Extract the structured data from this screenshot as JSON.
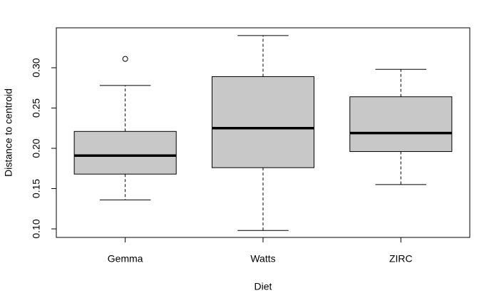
{
  "chart_data": {
    "type": "boxplot",
    "xlabel": "Diet",
    "ylabel": "Distance to centroid",
    "categories": [
      "Gemma",
      "Watts",
      "ZIRC"
    ],
    "boxes": [
      {
        "whislo": 0.136,
        "q1": 0.168,
        "med": 0.191,
        "q3": 0.221,
        "whishi": 0.278,
        "fliers": [
          0.311
        ]
      },
      {
        "whislo": 0.098,
        "q1": 0.176,
        "med": 0.225,
        "q3": 0.289,
        "whishi": 0.34,
        "fliers": []
      },
      {
        "whislo": 0.155,
        "q1": 0.196,
        "med": 0.219,
        "q3": 0.264,
        "whishi": 0.298,
        "fliers": []
      }
    ],
    "color": "#c8c8c8",
    "ylim": [
      0.0894,
      0.3496
    ],
    "yticks": [
      {
        "value": 0.1,
        "label": "0.10"
      },
      {
        "value": 0.15,
        "label": "0.15"
      },
      {
        "value": 0.2,
        "label": "0.20"
      },
      {
        "value": 0.25,
        "label": "0.25"
      },
      {
        "value": 0.3,
        "label": "0.30"
      }
    ]
  }
}
